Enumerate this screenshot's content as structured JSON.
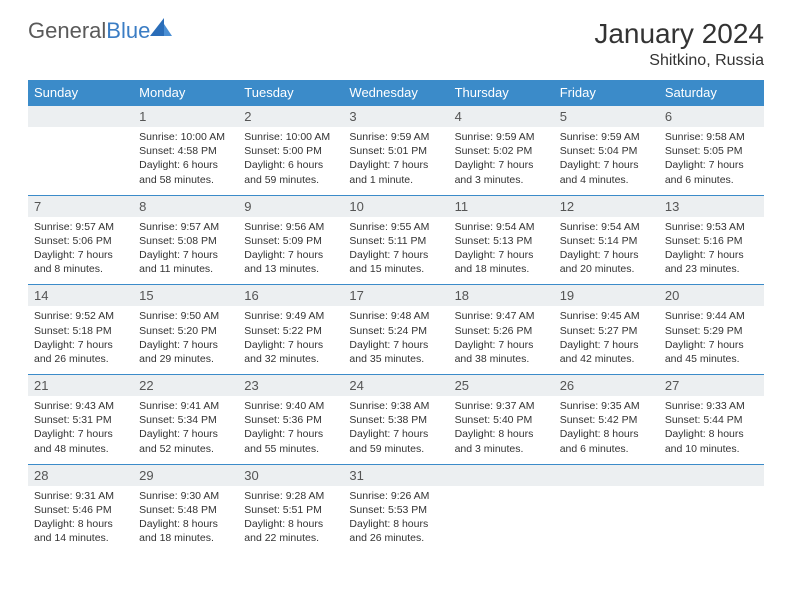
{
  "logo": {
    "part1": "General",
    "part2": "Blue"
  },
  "header": {
    "title": "January 2024",
    "location": "Shitkino, Russia"
  },
  "colors": {
    "header_bg": "#3b8bc9",
    "header_text": "#ffffff",
    "daynum_bg": "#eceff1",
    "daynum_border": "#3b8bc9",
    "text": "#333333",
    "logo_dark": "#2a6db8",
    "logo_light": "#4a8fd4"
  },
  "daynames": [
    "Sunday",
    "Monday",
    "Tuesday",
    "Wednesday",
    "Thursday",
    "Friday",
    "Saturday"
  ],
  "first_weekday": 1,
  "days": [
    {
      "n": 1,
      "sunrise": "10:00 AM",
      "sunset": "4:58 PM",
      "daylight": "6 hours and 58 minutes."
    },
    {
      "n": 2,
      "sunrise": "10:00 AM",
      "sunset": "5:00 PM",
      "daylight": "6 hours and 59 minutes."
    },
    {
      "n": 3,
      "sunrise": "9:59 AM",
      "sunset": "5:01 PM",
      "daylight": "7 hours and 1 minute."
    },
    {
      "n": 4,
      "sunrise": "9:59 AM",
      "sunset": "5:02 PM",
      "daylight": "7 hours and 3 minutes."
    },
    {
      "n": 5,
      "sunrise": "9:59 AM",
      "sunset": "5:04 PM",
      "daylight": "7 hours and 4 minutes."
    },
    {
      "n": 6,
      "sunrise": "9:58 AM",
      "sunset": "5:05 PM",
      "daylight": "7 hours and 6 minutes."
    },
    {
      "n": 7,
      "sunrise": "9:57 AM",
      "sunset": "5:06 PM",
      "daylight": "7 hours and 8 minutes."
    },
    {
      "n": 8,
      "sunrise": "9:57 AM",
      "sunset": "5:08 PM",
      "daylight": "7 hours and 11 minutes."
    },
    {
      "n": 9,
      "sunrise": "9:56 AM",
      "sunset": "5:09 PM",
      "daylight": "7 hours and 13 minutes."
    },
    {
      "n": 10,
      "sunrise": "9:55 AM",
      "sunset": "5:11 PM",
      "daylight": "7 hours and 15 minutes."
    },
    {
      "n": 11,
      "sunrise": "9:54 AM",
      "sunset": "5:13 PM",
      "daylight": "7 hours and 18 minutes."
    },
    {
      "n": 12,
      "sunrise": "9:54 AM",
      "sunset": "5:14 PM",
      "daylight": "7 hours and 20 minutes."
    },
    {
      "n": 13,
      "sunrise": "9:53 AM",
      "sunset": "5:16 PM",
      "daylight": "7 hours and 23 minutes."
    },
    {
      "n": 14,
      "sunrise": "9:52 AM",
      "sunset": "5:18 PM",
      "daylight": "7 hours and 26 minutes."
    },
    {
      "n": 15,
      "sunrise": "9:50 AM",
      "sunset": "5:20 PM",
      "daylight": "7 hours and 29 minutes."
    },
    {
      "n": 16,
      "sunrise": "9:49 AM",
      "sunset": "5:22 PM",
      "daylight": "7 hours and 32 minutes."
    },
    {
      "n": 17,
      "sunrise": "9:48 AM",
      "sunset": "5:24 PM",
      "daylight": "7 hours and 35 minutes."
    },
    {
      "n": 18,
      "sunrise": "9:47 AM",
      "sunset": "5:26 PM",
      "daylight": "7 hours and 38 minutes."
    },
    {
      "n": 19,
      "sunrise": "9:45 AM",
      "sunset": "5:27 PM",
      "daylight": "7 hours and 42 minutes."
    },
    {
      "n": 20,
      "sunrise": "9:44 AM",
      "sunset": "5:29 PM",
      "daylight": "7 hours and 45 minutes."
    },
    {
      "n": 21,
      "sunrise": "9:43 AM",
      "sunset": "5:31 PM",
      "daylight": "7 hours and 48 minutes."
    },
    {
      "n": 22,
      "sunrise": "9:41 AM",
      "sunset": "5:34 PM",
      "daylight": "7 hours and 52 minutes."
    },
    {
      "n": 23,
      "sunrise": "9:40 AM",
      "sunset": "5:36 PM",
      "daylight": "7 hours and 55 minutes."
    },
    {
      "n": 24,
      "sunrise": "9:38 AM",
      "sunset": "5:38 PM",
      "daylight": "7 hours and 59 minutes."
    },
    {
      "n": 25,
      "sunrise": "9:37 AM",
      "sunset": "5:40 PM",
      "daylight": "8 hours and 3 minutes."
    },
    {
      "n": 26,
      "sunrise": "9:35 AM",
      "sunset": "5:42 PM",
      "daylight": "8 hours and 6 minutes."
    },
    {
      "n": 27,
      "sunrise": "9:33 AM",
      "sunset": "5:44 PM",
      "daylight": "8 hours and 10 minutes."
    },
    {
      "n": 28,
      "sunrise": "9:31 AM",
      "sunset": "5:46 PM",
      "daylight": "8 hours and 14 minutes."
    },
    {
      "n": 29,
      "sunrise": "9:30 AM",
      "sunset": "5:48 PM",
      "daylight": "8 hours and 18 minutes."
    },
    {
      "n": 30,
      "sunrise": "9:28 AM",
      "sunset": "5:51 PM",
      "daylight": "8 hours and 22 minutes."
    },
    {
      "n": 31,
      "sunrise": "9:26 AM",
      "sunset": "5:53 PM",
      "daylight": "8 hours and 26 minutes."
    }
  ],
  "labels": {
    "sunrise": "Sunrise:",
    "sunset": "Sunset:",
    "daylight": "Daylight:"
  }
}
